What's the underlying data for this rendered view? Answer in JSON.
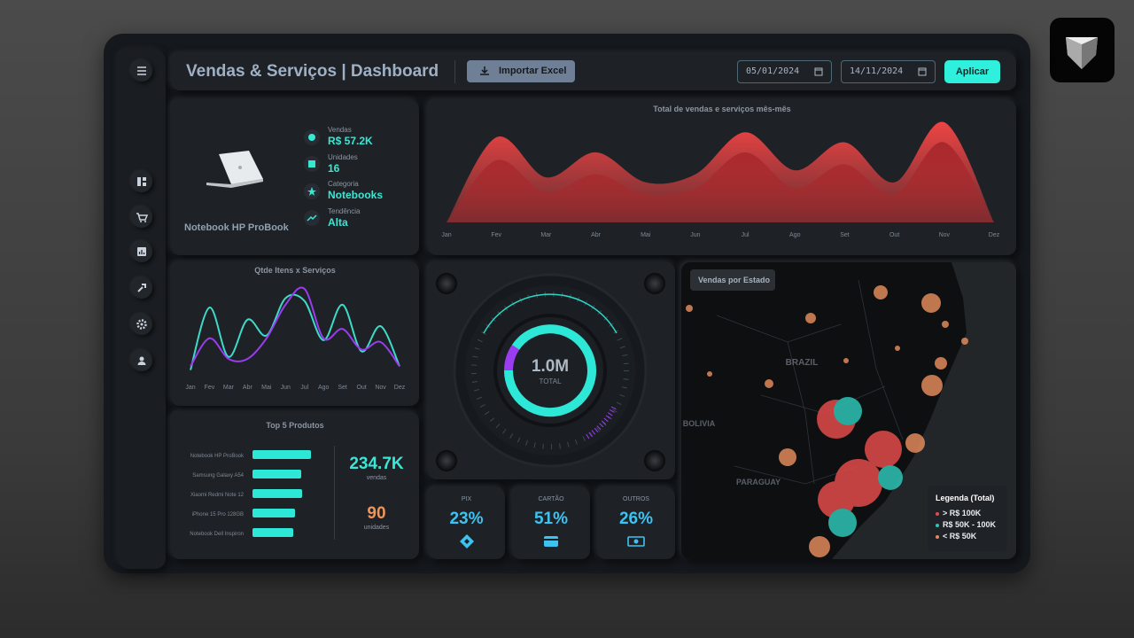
{
  "header": {
    "title": "Vendas & Serviços | Dashboard",
    "import_button": "Importar Excel",
    "date_start": "05/01/2024",
    "date_end": "14/11/2024",
    "apply_button": "Aplicar"
  },
  "product": {
    "name": "Notebook HP ProBook",
    "stats": [
      {
        "label": "Vendas",
        "value": "R$ 57.2K"
      },
      {
        "label": "Unidades",
        "value": "16"
      },
      {
        "label": "Categoria",
        "value": "Notebooks"
      },
      {
        "label": "Tendência",
        "value": "Alta"
      }
    ]
  },
  "chart_data": [
    {
      "type": "area",
      "title": "Total de vendas e serviços mês-mês",
      "categories": [
        "Jan",
        "Fev",
        "Mar",
        "Abr",
        "Mai",
        "Jun",
        "Jul",
        "Ago",
        "Set",
        "Out",
        "Nov",
        "Dez"
      ],
      "series": [
        {
          "color": "#ee4444",
          "values": [
            0,
            85,
            45,
            70,
            40,
            48,
            90,
            52,
            80,
            40,
            100,
            0
          ]
        },
        {
          "color": "#a8282c",
          "values": [
            0,
            62,
            30,
            48,
            28,
            34,
            70,
            34,
            58,
            28,
            80,
            0
          ]
        }
      ]
    },
    {
      "type": "line",
      "title": "Qtde Itens x Serviços",
      "categories": [
        "Jan",
        "Fev",
        "Mar",
        "Abr",
        "Mai",
        "Jun",
        "Jul",
        "Ago",
        "Set",
        "Out",
        "Nov",
        "Dez"
      ],
      "series": [
        {
          "color": "#3fd9c8",
          "values": [
            8,
            75,
            22,
            62,
            45,
            85,
            82,
            40,
            78,
            28,
            55,
            12
          ]
        },
        {
          "color": "#9a3cf0",
          "values": [
            12,
            42,
            20,
            20,
            42,
            78,
            95,
            42,
            52,
            30,
            38,
            12
          ]
        }
      ]
    },
    {
      "type": "bar",
      "orientation": "horizontal",
      "title": "Top 5 Produtos",
      "categories": [
        "Notebook HP ProBook",
        "Samsung Galaxy A54",
        "Xiaomi Redmi Note 12",
        "iPhone 15 Pro 128GB",
        "Notebook Dell Inspiron"
      ],
      "values": [
        66,
        55,
        56,
        48,
        46
      ],
      "color": "#2de8d6"
    }
  ],
  "top_products_summary": {
    "sales": "234.7K",
    "sales_label": "vendas",
    "units": "90",
    "units_label": "unidades"
  },
  "gauge": {
    "value": "1.0M",
    "label": "TOTAL"
  },
  "payments": [
    {
      "label": "PIX",
      "value": "23%"
    },
    {
      "label": "CARTÃO",
      "value": "51%"
    },
    {
      "label": "OUTROS",
      "value": "26%"
    }
  ],
  "map": {
    "title": "Vendas por Estado",
    "labels": [
      "BRAZIL",
      "BOLIVIA",
      "PARAGUAY"
    ],
    "legend": {
      "title": "Legenda (Total)",
      "items": [
        {
          "label": "> R$ 100K",
          "color": "#e24a4a"
        },
        {
          "label": "R$ 50K - 100K",
          "color": "#2ec4b6"
        },
        {
          "label": "< R$ 50K",
          "color": "#e08a5a"
        }
      ]
    }
  }
}
